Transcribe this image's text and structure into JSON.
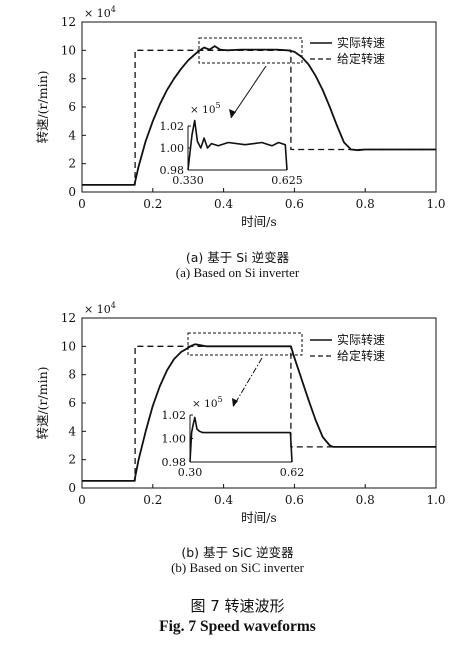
{
  "figure": {
    "title_cn": "图 7  转速波形",
    "title_en": "Fig. 7 Speed waveforms"
  },
  "chart_data": [
    {
      "type": "line",
      "caption_cn": "(a)  基于 Si 逆变器",
      "caption_en": "(a) Based on Si inverter",
      "xlabel": "时间/s",
      "ylabel": "转速/(r/min)",
      "y_multiplier": "× 10^4",
      "xlim": [
        0,
        1.0
      ],
      "ylim": [
        0,
        12
      ],
      "xticks": [
        0,
        0.2,
        0.4,
        0.6,
        0.8,
        1.0
      ],
      "xtick_labels": [
        "0",
        "0.2",
        "0.4",
        "0.6",
        "0.8",
        "1.0"
      ],
      "yticks": [
        0,
        2,
        4,
        6,
        8,
        10,
        12
      ],
      "ytick_labels": [
        "0",
        "2",
        "4",
        "6",
        "8",
        "10",
        "12"
      ],
      "legend_position": "top-right",
      "series": [
        {
          "name": "实际转速",
          "style": "solid",
          "x": [
            0,
            0.148,
            0.16,
            0.18,
            0.2,
            0.22,
            0.24,
            0.26,
            0.28,
            0.3,
            0.32,
            0.33,
            0.345,
            0.36,
            0.375,
            0.39,
            0.41,
            0.45,
            0.5,
            0.55,
            0.58,
            0.6,
            0.62,
            0.64,
            0.66,
            0.68,
            0.7,
            0.72,
            0.74,
            0.76,
            0.78,
            0.8,
            1.0
          ],
          "y": [
            0.5,
            0.5,
            1.8,
            3.6,
            5.0,
            6.2,
            7.2,
            8.0,
            8.7,
            9.3,
            9.75,
            9.95,
            10.2,
            10.05,
            10.3,
            10.05,
            10.0,
            10.05,
            10.05,
            10.05,
            10.0,
            9.9,
            9.55,
            9.0,
            8.2,
            7.2,
            6.0,
            4.7,
            3.5,
            3.0,
            2.95,
            3.0,
            3.0
          ]
        },
        {
          "name": "给定转速",
          "style": "dashed",
          "x": [
            0,
            0.15,
            0.15,
            0.59,
            0.59,
            1.0
          ],
          "y": [
            0.5,
            0.5,
            10.0,
            10.0,
            3.0,
            3.0
          ]
        }
      ],
      "inset": {
        "multiplier": "× 10^5",
        "xlim": [
          0.33,
          0.625
        ],
        "ylim": [
          0.98,
          1.02
        ],
        "xtick_labels": [
          "0.330",
          "0.625"
        ],
        "ytick_labels": [
          "1.02",
          "1.00",
          "0.98"
        ],
        "yticks": [
          1.02,
          1.0,
          0.98
        ],
        "x": [
          0.33,
          0.342,
          0.35,
          0.358,
          0.368,
          0.378,
          0.388,
          0.4,
          0.42,
          0.45,
          0.5,
          0.55,
          0.58,
          0.6,
          0.62,
          0.625
        ],
        "y": [
          0.98,
          1.012,
          1.025,
          1.006,
          1.0,
          1.009,
          1.0,
          1.004,
          1.002,
          1.005,
          1.003,
          1.005,
          1.002,
          1.005,
          1.003,
          0.98
        ]
      }
    },
    {
      "type": "line",
      "caption_cn": "(b)  基于 SiC 逆变器",
      "caption_en": "(b) Based on SiC inverter",
      "xlabel": "时间/s",
      "ylabel": "转速/(r/min)",
      "y_multiplier": "× 10^4",
      "xlim": [
        0,
        1.0
      ],
      "ylim": [
        0,
        12
      ],
      "xticks": [
        0,
        0.2,
        0.4,
        0.6,
        0.8,
        1.0
      ],
      "xtick_labels": [
        "0",
        "0.2",
        "0.4",
        "0.6",
        "0.8",
        "1.0"
      ],
      "yticks": [
        0,
        2,
        4,
        6,
        8,
        10,
        12
      ],
      "ytick_labels": [
        "0",
        "2",
        "4",
        "6",
        "8",
        "10",
        "12"
      ],
      "legend_position": "top-right",
      "series": [
        {
          "name": "实际转速",
          "style": "solid",
          "x": [
            0,
            0.148,
            0.16,
            0.18,
            0.2,
            0.22,
            0.24,
            0.26,
            0.28,
            0.3,
            0.31,
            0.32,
            0.33,
            0.35,
            0.4,
            0.5,
            0.59,
            0.6,
            0.62,
            0.64,
            0.66,
            0.68,
            0.7,
            0.71,
            0.72,
            0.8,
            1.0
          ],
          "y": [
            0.5,
            0.5,
            2.0,
            4.0,
            5.8,
            7.2,
            8.3,
            9.1,
            9.6,
            9.9,
            10.05,
            10.15,
            10.1,
            10.0,
            10.0,
            10.0,
            10.0,
            9.2,
            7.7,
            6.2,
            4.8,
            3.6,
            3.0,
            2.9,
            2.9,
            2.9,
            2.9
          ]
        },
        {
          "name": "给定转速",
          "style": "dashed",
          "x": [
            0,
            0.15,
            0.15,
            0.59,
            0.59,
            1.0
          ],
          "y": [
            0.5,
            0.5,
            10.0,
            10.0,
            2.9,
            2.9
          ]
        }
      ],
      "inset": {
        "multiplier": "× 10^5",
        "xlim": [
          0.3,
          0.62
        ],
        "ylim": [
          0.98,
          1.02
        ],
        "xtick_labels": [
          "0.30",
          "0.62"
        ],
        "ytick_labels": [
          "1.02",
          "1.00",
          "0.98"
        ],
        "yticks": [
          1.02,
          1.0,
          0.98
        ],
        "x": [
          0.3,
          0.305,
          0.31,
          0.315,
          0.322,
          0.33,
          0.34,
          0.36,
          0.4,
          0.5,
          0.6,
          0.615,
          0.62
        ],
        "y": [
          0.98,
          1.005,
          1.012,
          1.018,
          1.008,
          1.006,
          1.005,
          1.005,
          1.005,
          1.005,
          1.005,
          1.005,
          0.98
        ]
      }
    }
  ]
}
